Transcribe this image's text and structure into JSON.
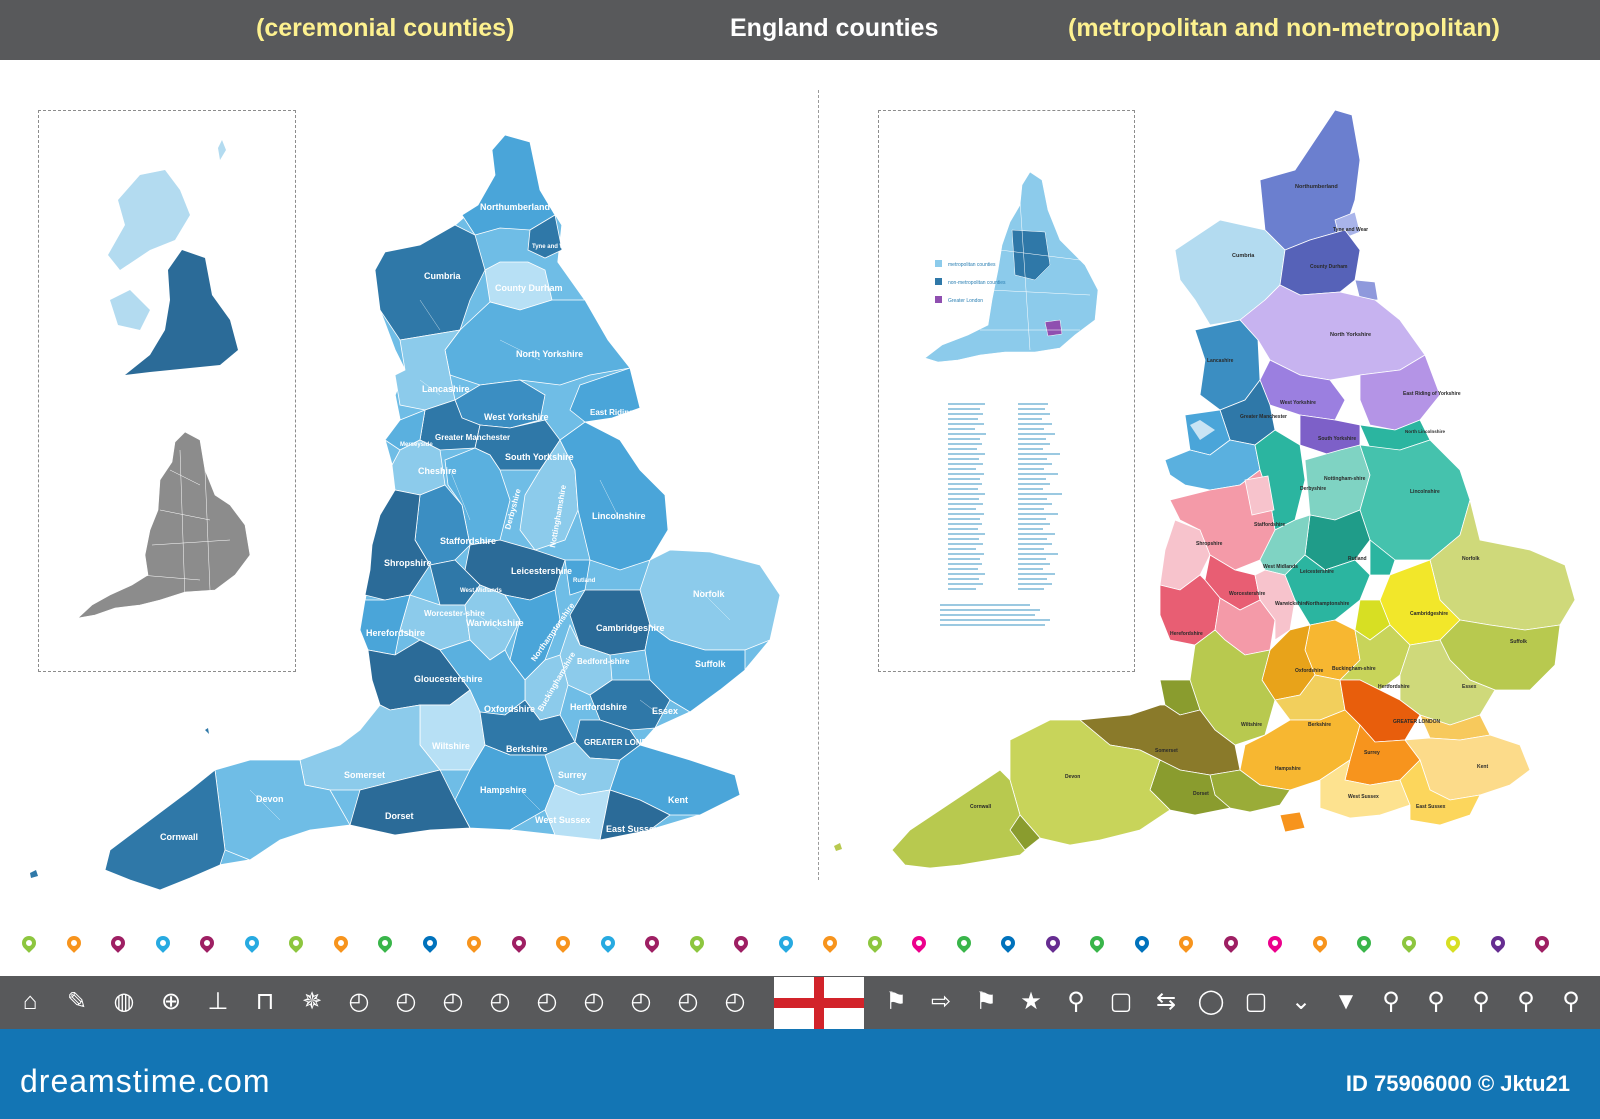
{
  "header": {
    "left": "(ceremonial counties)",
    "center": "England counties",
    "right": "(metropolitan and non-metropolitan)"
  },
  "colors": {
    "header_bg": "#58595b",
    "header_accent": "#fdf18f",
    "footer_bg": "#1375b4",
    "flag_red": "#d2232a"
  },
  "ceremonial_labels": {
    "northumberland": "Northumberland",
    "tyne_and_wear": "Tyne and Wear",
    "cumbria": "Cumbria",
    "county_durham": "County Durham",
    "north_yorkshire": "North Yorkshire",
    "lancashire": "Lancashire",
    "east_riding": "East Riding of Yorkshire",
    "west_yorkshire": "West Yorkshire",
    "merseyside": "Merseyside",
    "greater_manchester": "Greater Manchester",
    "south_yorkshire": "South Yorkshire",
    "cheshire": "Cheshire",
    "derbyshire": "Derbyshire",
    "nottinghamshire": "Nottinghamshire",
    "lincolnshire": "Lincolnshire",
    "staffordshire": "Staffordshire",
    "shropshire": "Shropshire",
    "leicestershire": "Leicestershire",
    "rutland": "Rutland",
    "west_midlands": "West Midlands",
    "norfolk": "Norfolk",
    "worcestershire": "Worcester-shire",
    "warwickshire": "Warwickshire",
    "northamptonshire": "Northamptonshire",
    "cambridgeshire": "Cambridgeshire",
    "herefordshire": "Herefordshire",
    "bedfordshire": "Bedford-shire",
    "suffolk": "Suffolk",
    "gloucestershire": "Gloucestershire",
    "buckinghamshire": "Buckinghamshire",
    "hertfordshire": "Hertfordshire",
    "oxfordshire": "Oxfordshire",
    "essex": "Essex",
    "wiltshire": "Wiltshire",
    "greater_london": "GREATER LONDON",
    "berkshire": "Berkshire",
    "somerset": "Somerset",
    "surrey": "Surrey",
    "devon": "Devon",
    "hampshire": "Hampshire",
    "kent": "Kent",
    "dorset": "Dorset",
    "west_sussex": "West Sussex",
    "east_sussex": "East Sussex",
    "cornwall": "Cornwall"
  },
  "metro_labels": {
    "northumberland": "Northumberland",
    "tyne_and_wear": "Tyne and Wear",
    "cumbria": "Cumbria",
    "county_durham": "County Durham",
    "north_yorkshire": "North Yorkshire",
    "lancashire": "Lancashire",
    "east_riding": "East Riding of Yorkshire",
    "west_yorkshire": "West Yorkshire",
    "greater_manchester": "Greater Manchester",
    "south_yorkshire": "South Yorkshire",
    "north_lincolnshire": "North Lincolnshire",
    "nottinghamshire": "Nottingham-shire",
    "derbyshire": "Derbyshire",
    "lincolnshire": "Lincolnshire",
    "staffordshire": "Staffordshire",
    "shropshire": "Shropshire",
    "leicestershire": "Leicestershire",
    "rutland": "Rutland",
    "west_midlands": "West Midlands",
    "norfolk": "Norfolk",
    "worcestershire": "Worcestershire",
    "warwickshire": "Warwickshire",
    "northamptonshire": "Northamptonshire",
    "cambridgeshire": "Cambridgeshire",
    "herefordshire": "Herefordshire",
    "suffolk": "Suffolk",
    "oxfordshire": "Oxfordshire",
    "buckinghamshire": "Buckingham-shire",
    "hertfordshire": "Hertfordshire",
    "essex": "Essex",
    "wiltshire": "Wiltshire",
    "greater_london": "GREATER LONDON",
    "berkshire": "Berkshire",
    "surrey": "Surrey",
    "kent": "Kent",
    "devon": "Devon",
    "somerset": "Somerset",
    "hampshire": "Hampshire",
    "cornwall": "Cornwall",
    "dorset": "Dorset",
    "west_sussex": "West Sussex",
    "east_sussex": "East Sussex"
  },
  "legend": {
    "metropolitan": "metropolitan counties",
    "non_metropolitan": "non-metropolitan counties",
    "greater_london": "Greater London"
  },
  "pin_colors": [
    "#8dc63f",
    "#f7941d",
    "#9e1f63",
    "#27aae1",
    "#9e1f63",
    "#27aae1",
    "#8dc63f",
    "#f7941d",
    "#39b54a",
    "#0072bc",
    "#f7941d",
    "#9e1f63",
    "#f7941d",
    "#27aae1",
    "#9e1f63",
    "#8dc63f",
    "#9e1f63",
    "#27aae1",
    "#f7941d",
    "#8dc63f",
    "#ec008c",
    "#39b54a",
    "#0072bc",
    "#662d91",
    "#39b54a",
    "#0072bc",
    "#f7941d",
    "#9e1f63",
    "#ec008c",
    "#f7941d",
    "#39b54a",
    "#8dc63f",
    "#d7df23",
    "#662d91",
    "#9e1f63"
  ],
  "icons": [
    "home-icon",
    "pin-icon",
    "globe-icon",
    "globe-grid-icon",
    "signpost-icon",
    "sign-icon",
    "compass-rose-icon",
    "compass-icon",
    "compass-icon",
    "compass-icon",
    "compass-icon",
    "compass-icon",
    "compass-icon",
    "compass-icon",
    "compass-icon",
    "compass-icon",
    "flag-icon",
    "route-sign-icon",
    "flag-icon",
    "star-pin-icon",
    "location-pin-icon",
    "board-icon",
    "direction-sign-icon",
    "speech-bubble-icon",
    "board-icon",
    "chevrons-down-icon",
    "arrow-down-icon",
    "location-pin-icon",
    "location-pin-icon",
    "location-pin-icon",
    "pushpin-icon",
    "location-pin-icon"
  ],
  "footer": {
    "brand": "dreamstime.com",
    "id": "ID 75906000 © Jktu21"
  }
}
